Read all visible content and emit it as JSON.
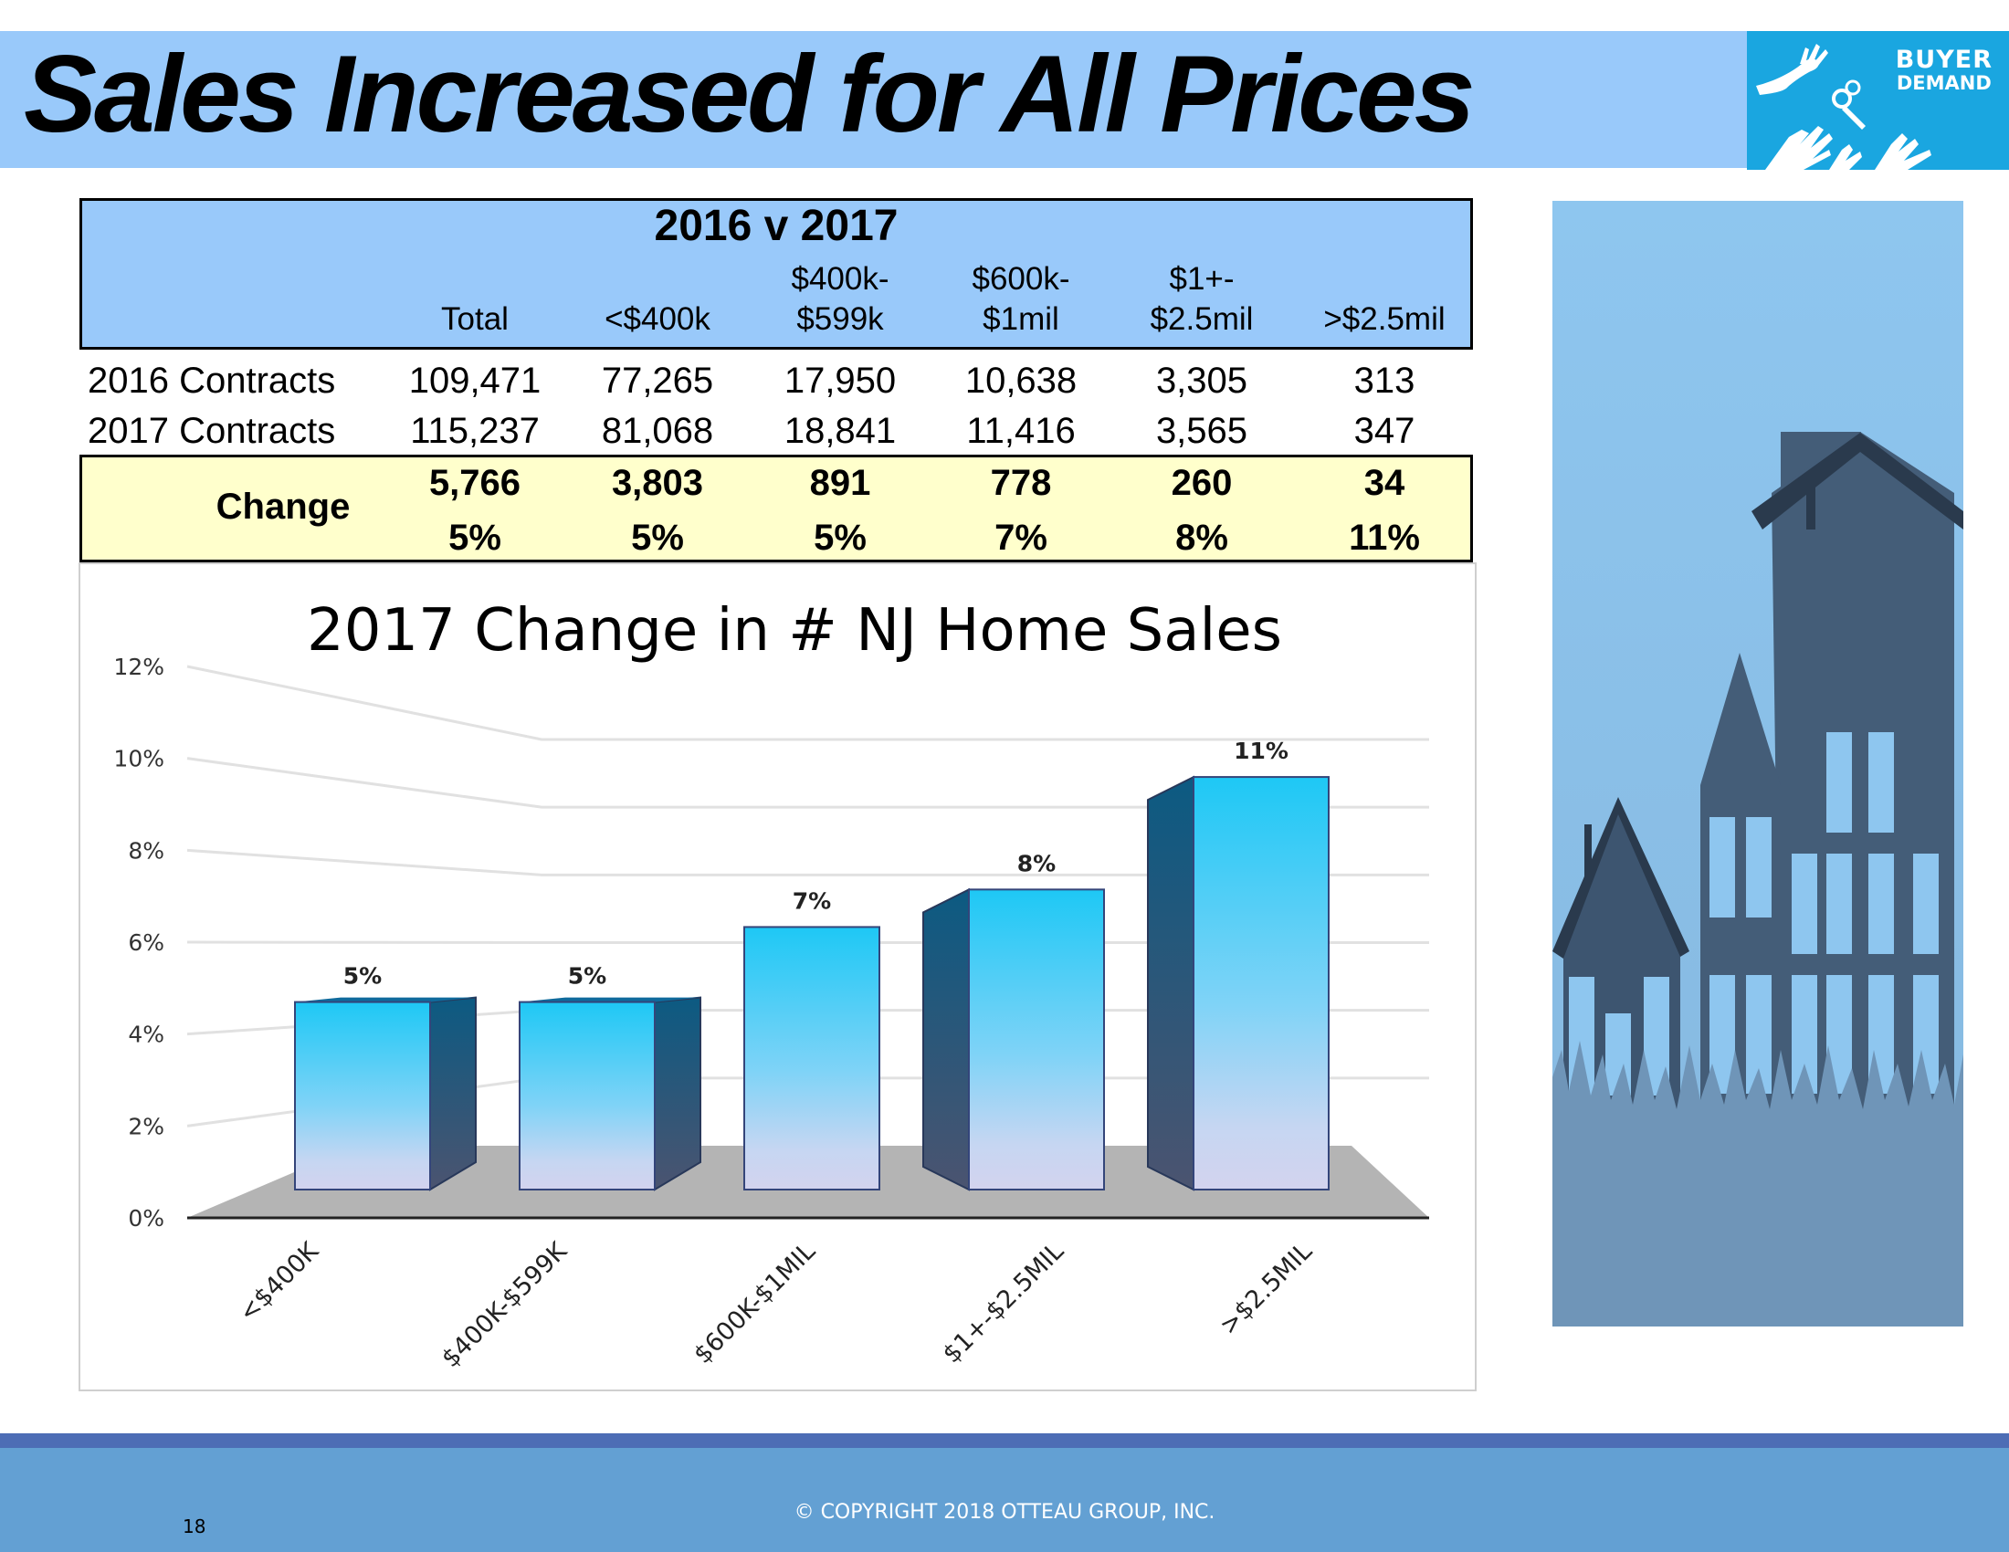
{
  "slide": {
    "title": "Sales Increased for All Prices",
    "page_number": "18",
    "copyright": "© COPYRIGHT 2018 OTTEAU GROUP, INC.",
    "logo": {
      "line1": "BUYER",
      "line2": "DEMAND"
    }
  },
  "table": {
    "title": "2016 v 2017",
    "columns": [
      {
        "line1": "",
        "line2": "Total"
      },
      {
        "line1": "",
        "line2": "<$400k"
      },
      {
        "line1": "$400k-",
        "line2": "$599k"
      },
      {
        "line1": "$600k-",
        "line2": "$1mil"
      },
      {
        "line1": "$1+-",
        "line2": "$2.5mil"
      },
      {
        "line1": "",
        "line2": ">$2.5mil"
      }
    ],
    "rows": [
      {
        "label": "2016 Contracts",
        "values": [
          "109,471",
          "77,265",
          "17,950",
          "10,638",
          "3,305",
          "313"
        ]
      },
      {
        "label": "2017 Contracts",
        "values": [
          "115,237",
          "81,068",
          "18,841",
          "11,416",
          "3,565",
          "347"
        ]
      }
    ],
    "change": {
      "label": "Change",
      "counts": [
        "5,766",
        "3,803",
        "891",
        "778",
        "260",
        "34"
      ],
      "percents": [
        "5%",
        "5%",
        "5%",
        "7%",
        "8%",
        "11%"
      ]
    }
  },
  "chart_data": {
    "type": "bar",
    "title": "2017 Change in # NJ Home Sales",
    "categories": [
      "<$400K",
      "$400K-$599K",
      "$600K-$1MIL",
      "$1+-$2.5MIL",
      ">$2.5MIL"
    ],
    "values": [
      5.0,
      5.0,
      7.0,
      8.0,
      11.0
    ],
    "data_labels": [
      "5%",
      "5%",
      "7%",
      "8%",
      "11%"
    ],
    "yticks": [
      "0%",
      "2%",
      "4%",
      "6%",
      "8%",
      "10%",
      "12%"
    ],
    "ylim": [
      0,
      12
    ],
    "xlabel": "",
    "ylabel": "",
    "grid": true,
    "legend": "none",
    "style": "3d-column",
    "colors": {
      "bar_top": "#1ec8f5",
      "bar_bottom": "#d3d3ee",
      "floor": "#b4b4b4",
      "bar_side": "#0c5a82"
    }
  }
}
